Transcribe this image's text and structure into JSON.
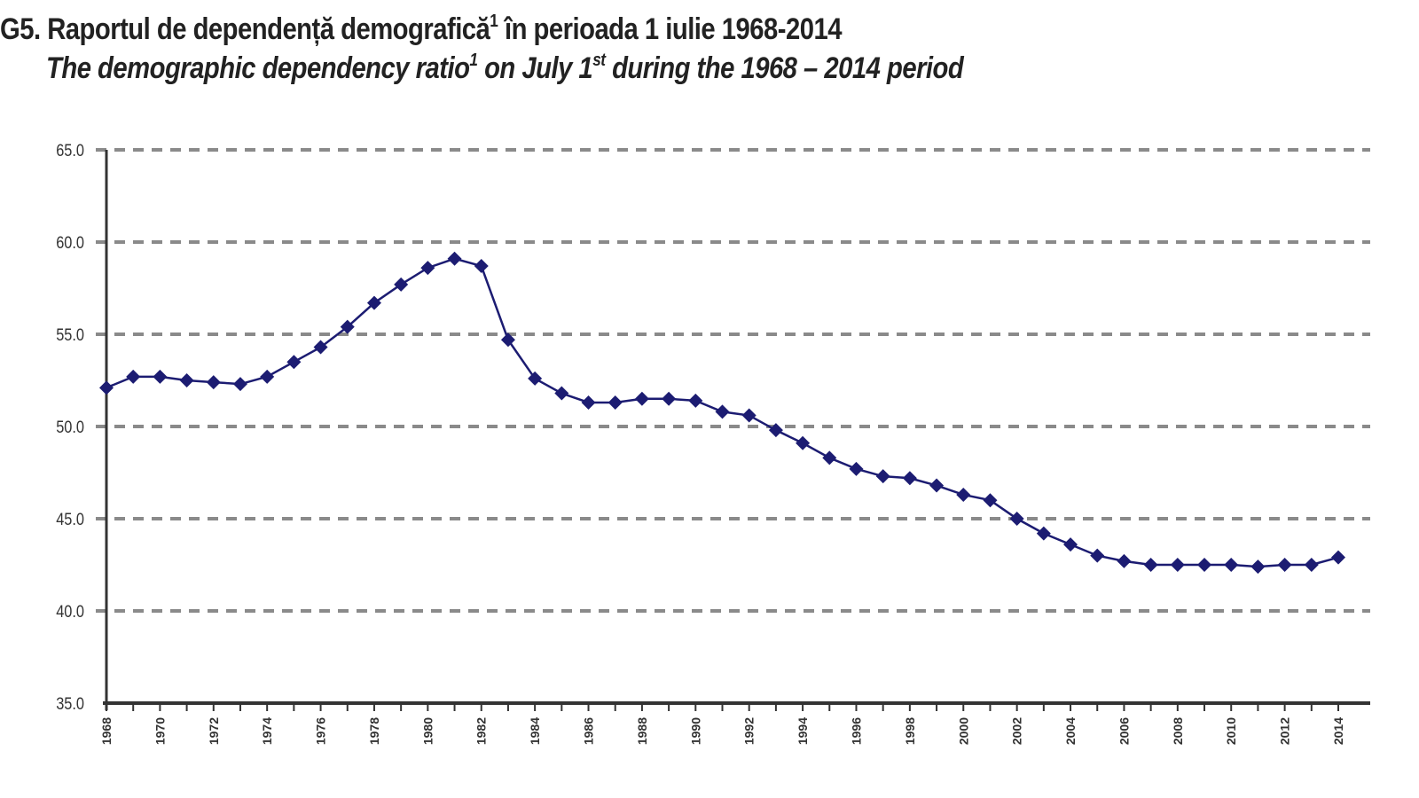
{
  "titles": {
    "ro_main": "G5. Raportul de dependență demografică",
    "ro_sup": "1",
    "ro_rest": " în perioada 1 iulie 1968-2014",
    "en_main": "The demographic dependency ratio",
    "en_sup": "1",
    "en_mid": " on July 1",
    "en_sup2": "st",
    "en_rest": " during the 1968 – 2014 period"
  },
  "colors": {
    "series": "#1c1c72",
    "grid": "#8a8a8a",
    "axis": "#333333"
  },
  "chart_data": {
    "type": "line",
    "title": "G5. Raportul de dependență demografică¹ în perioada 1 iulie 1968-2014 / The demographic dependency ratio¹ on July 1st during the 1968 – 2014 period",
    "xlabel": "",
    "ylabel": "",
    "ylim": [
      35.0,
      65.0
    ],
    "yticks": [
      "35.0",
      "40.0",
      "45.0",
      "50.0",
      "55.0",
      "60.0",
      "65.0"
    ],
    "xtick_labels": [
      "1968",
      "1970",
      "1972",
      "1974",
      "1976",
      "1978",
      "1980",
      "1982",
      "1984",
      "1986",
      "1988",
      "1990",
      "1992",
      "1994",
      "1996",
      "1998",
      "2000",
      "2002",
      "2004",
      "2006",
      "2008",
      "2010",
      "2012",
      "2014"
    ],
    "grid": true,
    "legend": "none",
    "marker": "diamond",
    "x": [
      1968,
      1969,
      1970,
      1971,
      1972,
      1973,
      1974,
      1975,
      1976,
      1977,
      1978,
      1979,
      1980,
      1981,
      1982,
      1983,
      1984,
      1985,
      1986,
      1987,
      1988,
      1989,
      1990,
      1991,
      1992,
      1993,
      1994,
      1995,
      1996,
      1997,
      1998,
      1999,
      2000,
      2001,
      2002,
      2003,
      2004,
      2005,
      2006,
      2007,
      2008,
      2009,
      2010,
      2011,
      2012,
      2013,
      2014
    ],
    "series": [
      {
        "name": "Dependency ratio",
        "values": [
          52.1,
          52.7,
          52.7,
          52.5,
          52.4,
          52.3,
          52.7,
          53.5,
          54.3,
          55.4,
          56.7,
          57.7,
          58.6,
          59.1,
          58.7,
          54.7,
          52.6,
          51.8,
          51.3,
          51.3,
          51.5,
          51.5,
          51.4,
          50.8,
          50.6,
          49.8,
          49.1,
          48.3,
          47.7,
          47.3,
          47.2,
          46.8,
          46.3,
          46.0,
          45.0,
          44.2,
          43.6,
          43.0,
          42.7,
          42.5,
          42.5,
          42.5,
          42.5,
          42.4,
          42.5,
          42.5,
          42.9
        ]
      }
    ]
  }
}
